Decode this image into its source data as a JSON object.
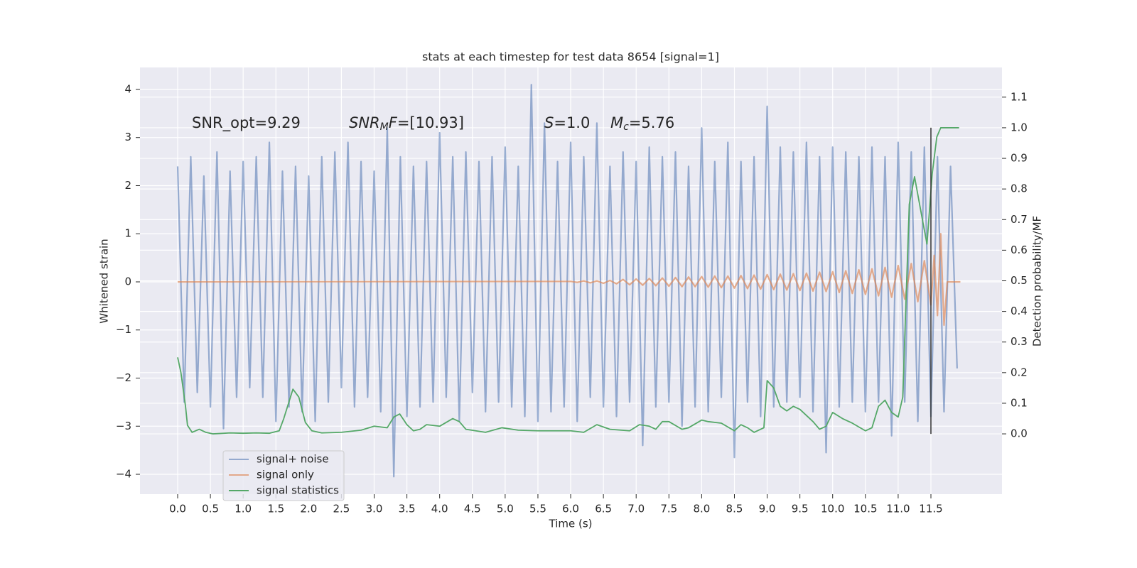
{
  "chart_data": {
    "type": "line",
    "title": "stats at each timestep for test data 8654 [signal=1]",
    "xlabel": "Time (s)",
    "ylabel": "Whitened strain",
    "y2label": "Detection probability/MF",
    "xlim": [
      -0.575,
      12.585
    ],
    "ylim": [
      -4.413,
      4.457
    ],
    "y2lim": [
      -0.197,
      1.197
    ],
    "xticks": [
      {
        "value": 0,
        "label": "0.0"
      },
      0.5,
      {
        "value": 1,
        "label": "1.0"
      },
      1.5,
      {
        "value": 2,
        "label": "2.0"
      },
      2.5,
      {
        "value": 3,
        "label": "3.0"
      },
      3.5,
      {
        "value": 4,
        "label": "4.0"
      },
      4.5,
      {
        "value": 5,
        "label": "5.0"
      },
      5.5,
      {
        "value": 6,
        "label": "6.0"
      },
      6.5,
      {
        "value": 7,
        "label": "7.0"
      },
      7.5,
      {
        "value": 8,
        "label": "8.0"
      },
      8.5,
      {
        "value": 9,
        "label": "9.0"
      },
      9.5,
      {
        "value": 10,
        "label": "10.0"
      },
      10.5,
      {
        "value": 11,
        "label": "11.0"
      },
      11.5
    ],
    "yticks": [
      {
        "value": -4,
        "label": "−4"
      },
      {
        "value": -3,
        "label": "−3"
      },
      {
        "value": -2,
        "label": "−2"
      },
      {
        "value": -1,
        "label": "−1"
      },
      0,
      1,
      2,
      3,
      4
    ],
    "y2ticks": [
      {
        "value": 0,
        "label": "0.0"
      },
      0.1,
      0.2,
      0.3,
      0.4,
      0.5,
      0.6,
      0.7,
      0.8,
      0.9,
      {
        "value": 1,
        "label": "1.0"
      },
      1.1
    ],
    "grid": true,
    "legend_loc": "lower left",
    "annotations": [
      [
        {
          "text": "SNR_opt=9.29"
        }
      ],
      [
        {
          "text": "SNR",
          "italic": true
        },
        {
          "text": "M",
          "italic": true,
          "sub": true
        },
        {
          "text": "F",
          "italic": true
        },
        {
          "text": "=[10.93]"
        }
      ],
      [
        {
          "text": "S",
          "italic": true
        },
        {
          "text": "=1.0"
        }
      ],
      [
        {
          "text": "M",
          "italic": true
        },
        {
          "text": "c",
          "italic": true,
          "sub": true
        },
        {
          "text": "=5.76"
        }
      ]
    ],
    "vline": {
      "x": 11.5,
      "ymin": 0,
      "ymax": 1,
      "axis": "y2",
      "color": "#333333"
    },
    "series": [
      {
        "name": "signal+ noise",
        "color": "#4c72b0",
        "opacity": 0.55,
        "x": [
          0.0,
          0.1,
          0.2,
          0.3,
          0.4,
          0.5,
          0.6,
          0.7,
          0.8,
          0.9,
          1.0,
          1.1,
          1.2,
          1.3,
          1.4,
          1.5,
          1.6,
          1.7,
          1.8,
          1.9,
          2.0,
          2.1,
          2.2,
          2.3,
          2.4,
          2.5,
          2.6,
          2.7,
          2.8,
          2.9,
          3.0,
          3.1,
          3.2,
          3.3,
          3.4,
          3.5,
          3.6,
          3.7,
          3.8,
          3.9,
          4.0,
          4.1,
          4.2,
          4.3,
          4.4,
          4.5,
          4.6,
          4.7,
          4.8,
          4.9,
          5.0,
          5.1,
          5.2,
          5.3,
          5.4,
          5.5,
          5.6,
          5.7,
          5.8,
          5.9,
          6.0,
          6.1,
          6.2,
          6.3,
          6.4,
          6.5,
          6.6,
          6.7,
          6.8,
          6.9,
          7.0,
          7.1,
          7.2,
          7.3,
          7.4,
          7.5,
          7.6,
          7.7,
          7.8,
          7.9,
          8.0,
          8.1,
          8.2,
          8.3,
          8.4,
          8.5,
          8.6,
          8.7,
          8.8,
          8.9,
          9.0,
          9.1,
          9.2,
          9.3,
          9.4,
          9.5,
          9.6,
          9.7,
          9.8,
          9.9,
          10.0,
          10.1,
          10.2,
          10.3,
          10.4,
          10.5,
          10.6,
          10.7,
          10.8,
          10.9,
          11.0,
          11.1,
          11.2,
          11.3,
          11.4,
          11.5,
          11.6,
          11.7,
          11.8,
          11.9
        ],
        "values": [
          2.4,
          -2.5,
          2.6,
          -2.3,
          2.2,
          -2.6,
          2.7,
          -3.05,
          2.3,
          -2.4,
          2.5,
          -2.2,
          2.6,
          -2.4,
          2.9,
          -2.9,
          2.3,
          -2.6,
          2.4,
          -2.7,
          2.2,
          -2.9,
          2.6,
          -2.5,
          2.7,
          -2.2,
          2.9,
          -2.6,
          2.5,
          -2.4,
          2.3,
          -2.7,
          3.2,
          -4.05,
          2.6,
          -2.8,
          2.4,
          -2.6,
          2.5,
          -2.5,
          3.1,
          -2.4,
          2.6,
          -2.9,
          2.7,
          -2.3,
          2.5,
          -2.7,
          2.6,
          -2.5,
          2.8,
          -2.6,
          2.4,
          -2.8,
          4.1,
          -2.9,
          3.3,
          -2.7,
          2.5,
          -2.6,
          2.9,
          -2.9,
          2.6,
          -2.4,
          3.3,
          -2.6,
          2.4,
          -2.8,
          2.7,
          -2.5,
          2.5,
          -3.4,
          2.8,
          -2.6,
          2.6,
          -2.5,
          2.7,
          -3.0,
          2.4,
          -2.6,
          3.2,
          -2.7,
          2.5,
          -2.4,
          2.9,
          -3.65,
          2.5,
          -2.5,
          2.6,
          -2.8,
          3.65,
          -2.6,
          2.8,
          -2.5,
          2.7,
          -2.4,
          2.9,
          -2.7,
          2.6,
          -3.55,
          2.8,
          -2.6,
          2.7,
          -2.5,
          2.6,
          -2.7,
          2.8,
          -2.5,
          2.6,
          -3.2,
          2.9,
          -2.5,
          2.7,
          -2.9,
          2.8,
          -2.8,
          2.6,
          -2.7,
          2.4,
          -1.8
        ]
      },
      {
        "name": "signal only",
        "color": "#dd8452",
        "opacity": 0.65,
        "x": [
          0.0,
          6.0,
          6.1,
          6.2,
          6.3,
          6.4,
          6.5,
          6.6,
          6.7,
          6.8,
          6.9,
          7.0,
          7.1,
          7.2,
          7.3,
          7.4,
          7.5,
          7.6,
          7.7,
          7.8,
          7.9,
          8.0,
          8.1,
          8.2,
          8.3,
          8.4,
          8.5,
          8.6,
          8.7,
          8.8,
          8.9,
          9.0,
          9.1,
          9.2,
          9.3,
          9.4,
          9.5,
          9.6,
          9.7,
          9.8,
          9.9,
          10.0,
          10.1,
          10.2,
          10.3,
          10.4,
          10.5,
          10.6,
          10.7,
          10.8,
          10.9,
          11.0,
          11.1,
          11.2,
          11.3,
          11.4,
          11.5,
          11.55,
          11.6,
          11.65,
          11.7,
          11.75,
          11.95
        ],
        "values": [
          0,
          0.01,
          -0.01,
          0.02,
          -0.02,
          0.02,
          -0.03,
          0.03,
          -0.04,
          0.05,
          -0.06,
          0.06,
          -0.07,
          0.07,
          -0.08,
          0.08,
          -0.09,
          0.09,
          -0.1,
          0.1,
          -0.1,
          0.11,
          -0.11,
          0.12,
          -0.12,
          0.12,
          -0.13,
          0.13,
          -0.14,
          0.14,
          -0.15,
          0.15,
          -0.16,
          0.16,
          -0.17,
          0.17,
          -0.18,
          0.18,
          -0.19,
          0.2,
          -0.2,
          0.21,
          -0.22,
          0.23,
          -0.24,
          0.25,
          -0.26,
          0.27,
          -0.29,
          0.3,
          -0.32,
          0.34,
          -0.36,
          0.38,
          -0.41,
          0.44,
          -0.48,
          0.55,
          -0.7,
          1.0,
          -0.9,
          0,
          0
        ]
      },
      {
        "name": "signal statistics",
        "color": "#55a868",
        "opacity": 1,
        "axis": "y2",
        "x": [
          0.0,
          0.05,
          0.12,
          0.15,
          0.22,
          0.33,
          0.43,
          0.54,
          0.8,
          1.0,
          1.2,
          1.4,
          1.55,
          1.62,
          1.76,
          1.85,
          1.95,
          2.05,
          2.2,
          2.5,
          2.8,
          3.0,
          3.2,
          3.3,
          3.39,
          3.5,
          3.6,
          3.7,
          3.8,
          4.0,
          4.2,
          4.3,
          4.4,
          4.7,
          4.95,
          5.2,
          5.5,
          6.0,
          6.2,
          6.4,
          6.6,
          6.9,
          7.05,
          7.2,
          7.3,
          7.4,
          7.5,
          7.7,
          7.8,
          8.0,
          8.1,
          8.3,
          8.5,
          8.6,
          8.7,
          8.8,
          8.95,
          9.0,
          9.1,
          9.2,
          9.3,
          9.4,
          9.5,
          9.7,
          9.8,
          9.9,
          10.0,
          10.15,
          10.3,
          10.5,
          10.6,
          10.7,
          10.8,
          10.9,
          11.0,
          11.07,
          11.17,
          11.25,
          11.37,
          11.44,
          11.52,
          11.59,
          11.65,
          11.93
        ],
        "values": [
          0.25,
          0.2,
          0.09,
          0.028,
          0.005,
          0.015,
          0.005,
          0.0,
          0.003,
          0.002,
          0.003,
          0.002,
          0.01,
          0.05,
          0.146,
          0.12,
          0.037,
          0.01,
          0.003,
          0.005,
          0.012,
          0.025,
          0.02,
          0.055,
          0.065,
          0.03,
          0.01,
          0.015,
          0.03,
          0.025,
          0.05,
          0.04,
          0.015,
          0.005,
          0.02,
          0.012,
          0.01,
          0.01,
          0.005,
          0.03,
          0.015,
          0.01,
          0.03,
          0.025,
          0.015,
          0.04,
          0.04,
          0.015,
          0.02,
          0.045,
          0.04,
          0.035,
          0.01,
          0.03,
          0.02,
          0.005,
          0.02,
          0.174,
          0.15,
          0.09,
          0.075,
          0.09,
          0.08,
          0.04,
          0.015,
          0.025,
          0.07,
          0.05,
          0.035,
          0.01,
          0.02,
          0.09,
          0.11,
          0.07,
          0.055,
          0.12,
          0.75,
          0.84,
          0.7,
          0.62,
          0.85,
          0.97,
          1.0,
          1.0
        ]
      }
    ]
  }
}
